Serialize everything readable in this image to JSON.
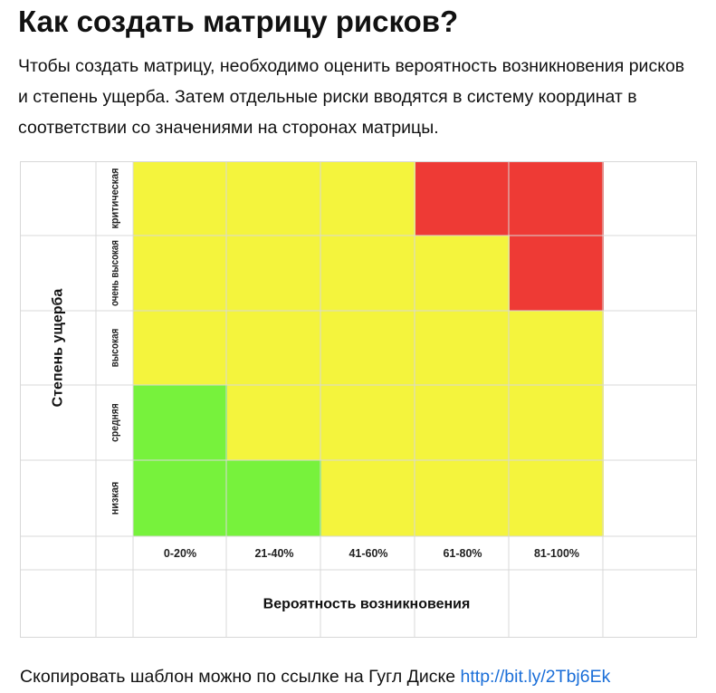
{
  "page": {
    "title": "Как создать матрицу рисков?",
    "intro": "Чтобы создать матрицу, необходимо оценить вероятность возникновения рисков и степень ущерба. Затем отдельные риски вводятся в систему координат в соответствии со значениями на сторонах матрицы.",
    "footer_text": "Скопировать шаблон можно по ссылке на Гугл Диске ",
    "footer_link": "http://bit.ly/2Tbj6Ek"
  },
  "colors": {
    "green": "#77f23c",
    "yellow": "#f4f43d",
    "red": "#ee3a35",
    "grid": "#d8d8d8",
    "link": "#1a6ed8"
  },
  "chart_data": {
    "type": "heatmap",
    "title": "",
    "xlabel": "Вероятность возникновения",
    "ylabel": "Степень ущерба",
    "x_categories": [
      "0-20%",
      "21-40%",
      "41-60%",
      "61-80%",
      "81-100%"
    ],
    "y_categories": [
      "критическая",
      "очень высокая",
      "высокая",
      "средняя",
      "низкая"
    ],
    "cells": [
      [
        "yellow",
        "yellow",
        "yellow",
        "red",
        "red"
      ],
      [
        "yellow",
        "yellow",
        "yellow",
        "yellow",
        "red"
      ],
      [
        "yellow",
        "yellow",
        "yellow",
        "yellow",
        "yellow"
      ],
      [
        "green",
        "yellow",
        "yellow",
        "yellow",
        "yellow"
      ],
      [
        "green",
        "green",
        "yellow",
        "yellow",
        "yellow"
      ]
    ]
  }
}
